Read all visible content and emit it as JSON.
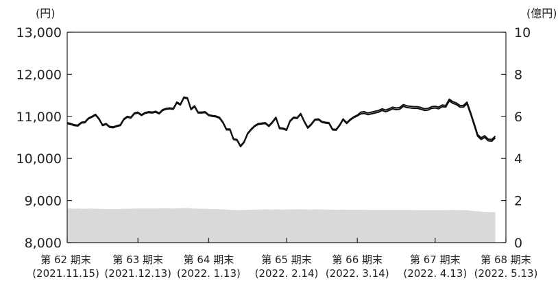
{
  "chart_data": {
    "type": "line",
    "left_axis": {
      "unit_label": "(円)",
      "ylim": [
        8000,
        13000
      ],
      "ticks": [
        "8,000",
        "9,000",
        "10,000",
        "11,000",
        "12,000",
        "13,000"
      ]
    },
    "right_axis": {
      "unit_label": "(億円)",
      "ylim": [
        0,
        10
      ],
      "ticks": [
        "0",
        "2",
        "4",
        "6",
        "8",
        "10"
      ]
    },
    "x_labels": [
      {
        "line1": "第 62 期末",
        "line2": "(2021.11.15)",
        "pos": 0
      },
      {
        "line1": "第 63 期末",
        "line2": "(2021.12.13)",
        "pos": 20
      },
      {
        "line1": "第 64 期末",
        "line2": "(2022. 1.13)",
        "pos": 40
      },
      {
        "line1": "第 65 期末",
        "line2": "(2022. 2.14)",
        "pos": 62
      },
      {
        "line1": "第 66 期末",
        "line2": "(2022. 3.14)",
        "pos": 82
      },
      {
        "line1": "第 67 期末",
        "line2": "(2022. 4.13)",
        "pos": 104
      },
      {
        "line1": "第 68 期末",
        "line2": "(2022. 5.13)",
        "pos": 124
      }
    ],
    "series": [
      {
        "axis": "left",
        "style": "line",
        "values": [
          10850,
          10830,
          10800,
          10790,
          10860,
          10870,
          10960,
          11000,
          11050,
          10950,
          10800,
          10830,
          10760,
          10750,
          10780,
          10800,
          10940,
          11000,
          10980,
          11080,
          11100,
          11040,
          11090,
          11110,
          11100,
          11120,
          11080,
          11160,
          11190,
          11200,
          11190,
          11340,
          11290,
          11460,
          11440,
          11180,
          11250,
          11100,
          11100,
          11110,
          11040,
          11020,
          11010,
          10980,
          10870,
          10700,
          10700,
          10470,
          10450,
          10300,
          10400,
          10600,
          10700,
          10780,
          10830,
          10840,
          10850,
          10780,
          10870,
          10980,
          10730,
          10720,
          10690,
          10900,
          10980,
          10970,
          11070,
          10890,
          10740,
          10820,
          10930,
          10940,
          10880,
          10860,
          10850,
          10700,
          10690,
          10800,
          10940,
          10850,
          10930,
          10990,
          11030,
          11100,
          11110,
          11080,
          11100,
          11120,
          11140,
          11180,
          11150,
          11180,
          11220,
          11200,
          11210,
          11280,
          11250,
          11240,
          11230,
          11230,
          11210,
          11180,
          11190,
          11230,
          11240,
          11220,
          11270,
          11260,
          11410,
          11350,
          11320,
          11260,
          11260,
          11340,
          11100,
          10840,
          10570,
          10490,
          10540,
          10460,
          10450,
          10530
        ]
      },
      {
        "axis": "left",
        "style": "line",
        "values": [
          10830,
          10810,
          10780,
          10770,
          10840,
          10850,
          10940,
          10980,
          11030,
          10930,
          10780,
          10810,
          10740,
          10730,
          10760,
          10780,
          10920,
          10980,
          10960,
          11060,
          11080,
          11020,
          11070,
          11090,
          11080,
          11100,
          11060,
          11140,
          11170,
          11180,
          11170,
          11320,
          11270,
          11440,
          11420,
          11160,
          11230,
          11080,
          11080,
          11090,
          11020,
          11000,
          10990,
          10960,
          10850,
          10680,
          10680,
          10450,
          10430,
          10280,
          10380,
          10580,
          10680,
          10760,
          10810,
          10820,
          10830,
          10760,
          10850,
          10960,
          10710,
          10700,
          10670,
          10880,
          10960,
          10950,
          11050,
          10870,
          10720,
          10800,
          10910,
          10920,
          10860,
          10840,
          10830,
          10680,
          10670,
          10780,
          10920,
          10830,
          10910,
          10970,
          11010,
          11060,
          11070,
          11040,
          11060,
          11080,
          11100,
          11140,
          11110,
          11140,
          11180,
          11160,
          11170,
          11240,
          11210,
          11200,
          11190,
          11190,
          11170,
          11140,
          11150,
          11190,
          11200,
          11180,
          11230,
          11220,
          11370,
          11310,
          11280,
          11220,
          11220,
          11300,
          11060,
          10800,
          10530,
          10450,
          10500,
          10420,
          10410,
          10490
        ]
      },
      {
        "axis": "right",
        "style": "area",
        "values": [
          1.62,
          1.62,
          1.61,
          1.62,
          1.61,
          1.61,
          1.61,
          1.62,
          1.61,
          1.61,
          1.6,
          1.6,
          1.6,
          1.6,
          1.6,
          1.6,
          1.61,
          1.61,
          1.61,
          1.62,
          1.62,
          1.62,
          1.62,
          1.62,
          1.62,
          1.62,
          1.62,
          1.63,
          1.63,
          1.62,
          1.62,
          1.63,
          1.63,
          1.64,
          1.64,
          1.62,
          1.62,
          1.61,
          1.61,
          1.61,
          1.6,
          1.6,
          1.6,
          1.59,
          1.58,
          1.57,
          1.56,
          1.55,
          1.54,
          1.54,
          1.55,
          1.56,
          1.56,
          1.57,
          1.57,
          1.57,
          1.58,
          1.57,
          1.57,
          1.58,
          1.57,
          1.57,
          1.57,
          1.58,
          1.58,
          1.58,
          1.59,
          1.58,
          1.57,
          1.57,
          1.58,
          1.58,
          1.57,
          1.57,
          1.57,
          1.56,
          1.56,
          1.56,
          1.57,
          1.56,
          1.56,
          1.56,
          1.56,
          1.56,
          1.56,
          1.55,
          1.55,
          1.55,
          1.55,
          1.55,
          1.55,
          1.55,
          1.55,
          1.55,
          1.55,
          1.55,
          1.55,
          1.55,
          1.54,
          1.54,
          1.54,
          1.54,
          1.54,
          1.54,
          1.54,
          1.54,
          1.54,
          1.54,
          1.55,
          1.55,
          1.55,
          1.54,
          1.54,
          1.54,
          1.52,
          1.5,
          1.48,
          1.47,
          1.46,
          1.45,
          1.45,
          1.45
        ]
      }
    ]
  }
}
